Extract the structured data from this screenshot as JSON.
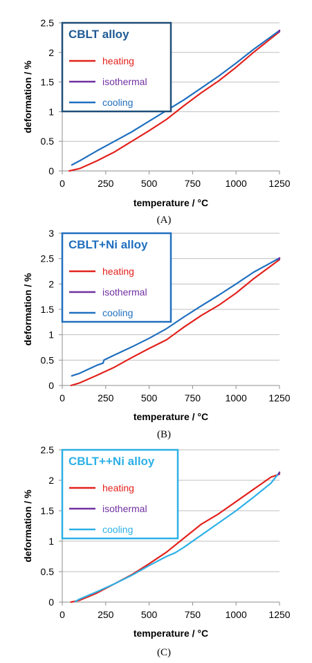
{
  "chart_data": [
    {
      "type": "line",
      "panel_label": "(A)",
      "legend_title": "CBLT alloy",
      "legend_title_color": "#1f5a94",
      "legend_border_color": "#1f4e79",
      "xlabel": "temperature / °C",
      "ylabel": "deformation / %",
      "xlim": [
        0,
        1250
      ],
      "ylim": [
        0,
        2.5
      ],
      "xticks": [
        0,
        250,
        500,
        750,
        1000,
        1250
      ],
      "yticks": [
        0,
        0.5,
        1,
        1.5,
        2,
        2.5
      ],
      "ytick_labels": [
        "0",
        "0.5",
        "1",
        "1.5",
        "2",
        "2.5"
      ],
      "grid": "horizontal",
      "legend_position": "top-left",
      "series": [
        {
          "name": "heating",
          "color": "#e3211c",
          "points": [
            [
              40,
              0
            ],
            [
              100,
              0.04
            ],
            [
              200,
              0.17
            ],
            [
              300,
              0.32
            ],
            [
              400,
              0.5
            ],
            [
              500,
              0.68
            ],
            [
              600,
              0.87
            ],
            [
              700,
              1.1
            ],
            [
              800,
              1.32
            ],
            [
              900,
              1.52
            ],
            [
              1000,
              1.75
            ],
            [
              1100,
              2.0
            ],
            [
              1250,
              2.35
            ]
          ]
        },
        {
          "name": "isothermal",
          "color": "#7030a0",
          "points": [
            [
              1245,
              2.34
            ],
            [
              1250,
              2.37
            ]
          ]
        },
        {
          "name": "cooling",
          "color": "#1f6fbf",
          "points": [
            [
              55,
              0.1
            ],
            [
              100,
              0.17
            ],
            [
              200,
              0.34
            ],
            [
              300,
              0.5
            ],
            [
              400,
              0.66
            ],
            [
              500,
              0.84
            ],
            [
              600,
              1.02
            ],
            [
              700,
              1.2
            ],
            [
              800,
              1.4
            ],
            [
              900,
              1.6
            ],
            [
              1000,
              1.82
            ],
            [
              1100,
              2.05
            ],
            [
              1250,
              2.37
            ]
          ]
        }
      ]
    },
    {
      "type": "line",
      "panel_label": "(B)",
      "legend_title": "CBLT+Ni alloy",
      "legend_title_color": "#1f6fbf",
      "legend_border_color": "#1f6fbf",
      "xlabel": "temperature / °C",
      "ylabel": "deformation / %",
      "xlim": [
        0,
        1250
      ],
      "ylim": [
        0,
        3
      ],
      "xticks": [
        0,
        250,
        500,
        750,
        1000,
        1250
      ],
      "yticks": [
        0,
        0.5,
        1,
        1.5,
        2,
        2.5,
        3
      ],
      "ytick_labels": [
        "0",
        "0.5",
        "1",
        "1.5",
        "2",
        "2.5",
        "3"
      ],
      "grid": "horizontal",
      "legend_position": "top-left",
      "series": [
        {
          "name": "heating",
          "color": "#e3211c",
          "points": [
            [
              50,
              0
            ],
            [
              100,
              0.05
            ],
            [
              200,
              0.2
            ],
            [
              300,
              0.36
            ],
            [
              400,
              0.55
            ],
            [
              500,
              0.73
            ],
            [
              600,
              0.9
            ],
            [
              700,
              1.15
            ],
            [
              800,
              1.38
            ],
            [
              900,
              1.58
            ],
            [
              1000,
              1.82
            ],
            [
              1100,
              2.1
            ],
            [
              1250,
              2.48
            ]
          ]
        },
        {
          "name": "isothermal",
          "color": "#7030a0",
          "points": [
            [
              1245,
              2.48
            ],
            [
              1250,
              2.51
            ]
          ]
        },
        {
          "name": "cooling",
          "color": "#1f6fbf",
          "points": [
            [
              55,
              0.19
            ],
            [
              100,
              0.24
            ],
            [
              150,
              0.32
            ],
            [
              200,
              0.4
            ],
            [
              235,
              0.44
            ],
            [
              240,
              0.5
            ],
            [
              300,
              0.6
            ],
            [
              400,
              0.76
            ],
            [
              500,
              0.93
            ],
            [
              600,
              1.12
            ],
            [
              700,
              1.35
            ],
            [
              800,
              1.57
            ],
            [
              900,
              1.78
            ],
            [
              1000,
              2.0
            ],
            [
              1100,
              2.23
            ],
            [
              1250,
              2.51
            ]
          ]
        }
      ]
    },
    {
      "type": "line",
      "panel_label": "(C)",
      "legend_title": "CBLT++Ni alloy",
      "legend_title_color": "#2db0e6",
      "legend_border_color": "#2db0e6",
      "xlabel": "temperature / °C",
      "ylabel": "deformation / %",
      "xlim": [
        0,
        1250
      ],
      "ylim": [
        0,
        2.5
      ],
      "xticks": [
        0,
        250,
        500,
        750,
        1000,
        1250
      ],
      "yticks": [
        0,
        0.5,
        1,
        1.5,
        2,
        2.5
      ],
      "ytick_labels": [
        "0",
        "0.5",
        "1",
        "1.5",
        "2",
        "2.5"
      ],
      "grid": "horizontal",
      "legend_position": "top-left",
      "series": [
        {
          "name": "heating",
          "color": "#e3211c",
          "points": [
            [
              50,
              0
            ],
            [
              100,
              0.03
            ],
            [
              200,
              0.15
            ],
            [
              300,
              0.3
            ],
            [
              400,
              0.45
            ],
            [
              500,
              0.63
            ],
            [
              600,
              0.82
            ],
            [
              700,
              1.05
            ],
            [
              800,
              1.28
            ],
            [
              900,
              1.45
            ],
            [
              1000,
              1.65
            ],
            [
              1100,
              1.85
            ],
            [
              1200,
              2.05
            ],
            [
              1250,
              2.1
            ]
          ]
        },
        {
          "name": "isothermal",
          "color": "#7030a0",
          "points": [
            [
              1245,
              2.1
            ],
            [
              1250,
              2.13
            ]
          ]
        },
        {
          "name": "cooling",
          "color": "#2db0e6",
          "points": [
            [
              75,
              0.01
            ],
            [
              100,
              0.05
            ],
            [
              200,
              0.17
            ],
            [
              300,
              0.3
            ],
            [
              400,
              0.44
            ],
            [
              500,
              0.6
            ],
            [
              600,
              0.75
            ],
            [
              650,
              0.81
            ],
            [
              700,
              0.9
            ],
            [
              800,
              1.1
            ],
            [
              900,
              1.3
            ],
            [
              1000,
              1.5
            ],
            [
              1100,
              1.72
            ],
            [
              1200,
              1.95
            ],
            [
              1250,
              2.13
            ]
          ]
        }
      ]
    }
  ]
}
